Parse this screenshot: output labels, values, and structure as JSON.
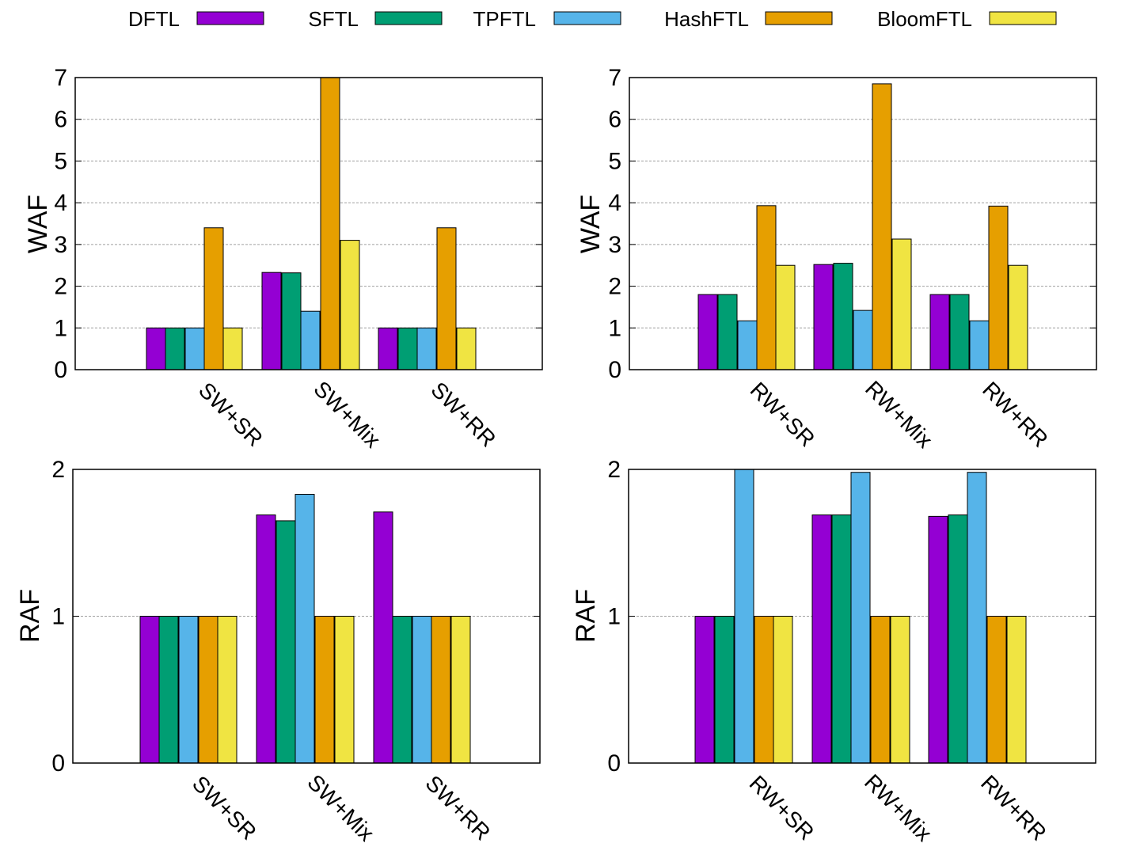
{
  "legend": [
    {
      "name": "DFTL",
      "color": "#9400d3"
    },
    {
      "name": "SFTL",
      "color": "#009e73"
    },
    {
      "name": "TPFTL",
      "color": "#56b4e9"
    },
    {
      "name": "HashFTL",
      "color": "#e69f00"
    },
    {
      "name": "BloomFTL",
      "color": "#f0e442"
    }
  ],
  "chart_data": [
    {
      "type": "bar",
      "ylabel": "WAF",
      "ylim": [
        0,
        7
      ],
      "yticks": [
        "0",
        "1",
        "2",
        "3",
        "4",
        "5",
        "6",
        "7"
      ],
      "grid": true,
      "categories": [
        "SW+SR",
        "SW+Mix",
        "SW+RR"
      ],
      "series": [
        {
          "name": "DFTL",
          "values": [
            1.0,
            2.33,
            1.0
          ]
        },
        {
          "name": "SFTL",
          "values": [
            1.0,
            2.32,
            1.0
          ]
        },
        {
          "name": "TPFTL",
          "values": [
            1.0,
            1.4,
            1.0
          ]
        },
        {
          "name": "HashFTL",
          "values": [
            3.4,
            7.0,
            3.4
          ]
        },
        {
          "name": "BloomFTL",
          "values": [
            1.0,
            3.1,
            1.0
          ]
        }
      ]
    },
    {
      "type": "bar",
      "ylabel": "WAF",
      "ylim": [
        0,
        7
      ],
      "yticks": [
        "0",
        "1",
        "2",
        "3",
        "4",
        "5",
        "6",
        "7"
      ],
      "grid": true,
      "categories": [
        "RW+SR",
        "RW+Mix",
        "RW+RR"
      ],
      "series": [
        {
          "name": "DFTL",
          "values": [
            1.8,
            2.52,
            1.8
          ]
        },
        {
          "name": "SFTL",
          "values": [
            1.8,
            2.55,
            1.8
          ]
        },
        {
          "name": "TPFTL",
          "values": [
            1.17,
            1.42,
            1.17
          ]
        },
        {
          "name": "HashFTL",
          "values": [
            3.93,
            6.85,
            3.92
          ]
        },
        {
          "name": "BloomFTL",
          "values": [
            2.5,
            3.13,
            2.5
          ]
        }
      ]
    },
    {
      "type": "bar",
      "ylabel": "RAF",
      "ylim": [
        0,
        2
      ],
      "yticks": [
        "0",
        "1",
        "2"
      ],
      "grid": true,
      "categories": [
        "SW+SR",
        "SW+Mix",
        "SW+RR"
      ],
      "series": [
        {
          "name": "DFTL",
          "values": [
            1.0,
            1.69,
            1.71
          ]
        },
        {
          "name": "SFTL",
          "values": [
            1.0,
            1.65,
            1.0
          ]
        },
        {
          "name": "TPFTL",
          "values": [
            1.0,
            1.83,
            1.0
          ]
        },
        {
          "name": "HashFTL",
          "values": [
            1.0,
            1.0,
            1.0
          ]
        },
        {
          "name": "BloomFTL",
          "values": [
            1.0,
            1.0,
            1.0
          ]
        }
      ]
    },
    {
      "type": "bar",
      "ylabel": "RAF",
      "ylim": [
        0,
        2
      ],
      "yticks": [
        "0",
        "1",
        "2"
      ],
      "grid": true,
      "categories": [
        "RW+SR",
        "RW+Mix",
        "RW+RR"
      ],
      "series": [
        {
          "name": "DFTL",
          "values": [
            1.0,
            1.69,
            1.68
          ]
        },
        {
          "name": "SFTL",
          "values": [
            1.0,
            1.69,
            1.69
          ]
        },
        {
          "name": "TPFTL",
          "values": [
            2.0,
            1.98,
            1.98
          ]
        },
        {
          "name": "HashFTL",
          "values": [
            1.0,
            1.0,
            1.0
          ]
        },
        {
          "name": "BloomFTL",
          "values": [
            1.0,
            1.0,
            1.0
          ]
        }
      ]
    }
  ]
}
